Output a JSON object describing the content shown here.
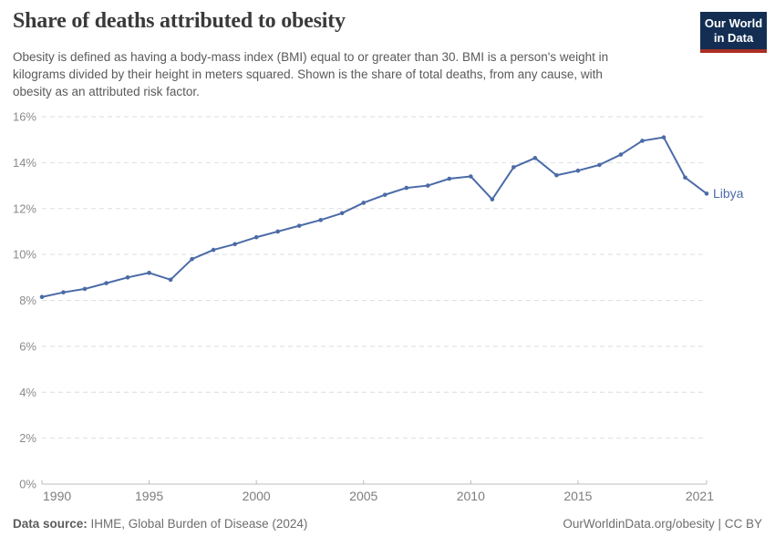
{
  "header": {
    "title": "Share of deaths attributed to obesity",
    "subtitle": "Obesity is defined as having a body-mass index (BMI) equal to or greater than 30. BMI is a person's weight in kilograms divided by their height in meters squared. Shown is the share of total deaths, from any cause, with obesity as an attributed risk factor.",
    "subtitle_lines": [
      "Obesity is defined as having a body-mass index (BMI) equal to or greater than 30. BMI is a person's weight in",
      "kilograms divided by their height in meters squared. Shown is the share of total deaths, from any cause, with",
      "obesity as an attributed risk factor."
    ],
    "logo": {
      "line1": "Our World",
      "line2": "in Data",
      "bg_color": "#132e52",
      "accent_color": "#aa2e24"
    }
  },
  "chart_data": {
    "type": "line",
    "title": "Share of deaths attributed to obesity",
    "xlabel": "",
    "ylabel": "",
    "xlim": [
      1990,
      2021
    ],
    "ylim": [
      0,
      16
    ],
    "grid": "horizontal-dashed",
    "legend_position": "end-of-line-label",
    "x_ticks": [
      1990,
      1995,
      2000,
      2005,
      2010,
      2015,
      2021
    ],
    "y_ticks": [
      "0%",
      "2%",
      "4%",
      "6%",
      "8%",
      "10%",
      "12%",
      "14%",
      "16%"
    ],
    "series": [
      {
        "name": "Libya",
        "color": "#4b6ba7",
        "x": [
          1990,
          1991,
          1992,
          1993,
          1994,
          1995,
          1996,
          1997,
          1998,
          1999,
          2000,
          2001,
          2002,
          2003,
          2004,
          2005,
          2006,
          2007,
          2008,
          2009,
          2010,
          2011,
          2012,
          2013,
          2014,
          2015,
          2016,
          2017,
          2018,
          2019,
          2020,
          2021
        ],
        "values": [
          8.15,
          8.35,
          8.5,
          8.75,
          9.0,
          9.2,
          8.9,
          9.8,
          10.2,
          10.45,
          10.75,
          11.0,
          11.25,
          11.5,
          11.8,
          12.25,
          12.6,
          12.9,
          13.0,
          13.3,
          13.4,
          12.4,
          13.8,
          14.2,
          13.45,
          13.65,
          13.9,
          14.35,
          14.95,
          15.1,
          13.35,
          12.65
        ]
      }
    ]
  },
  "footer": {
    "source_label": "Data source:",
    "source_value": "IHME, Global Burden of Disease (2024)",
    "rights": "OurWorldinData.org/obesity | CC BY"
  }
}
